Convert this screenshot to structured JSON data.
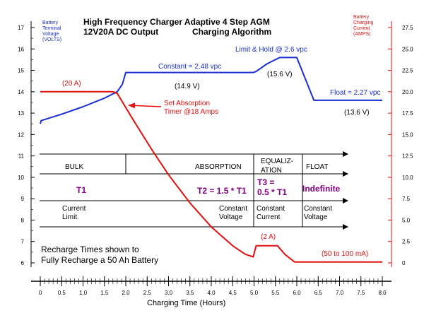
{
  "chart_data": {
    "type": "line",
    "title": "High Frequency Charger Adaptive 4 Step AGM",
    "title_line2_left": "12V20A DC Output",
    "title_line2_right": "Charging Algorithm",
    "xlabel": "Charging Time (Hours)",
    "ylabel_left": [
      "Battery",
      "Terminal",
      "Voltage",
      "(VOLTS)"
    ],
    "ylabel_right": [
      "Battery",
      "Charging",
      "Current",
      "(AMPS)"
    ],
    "xlim": [
      0,
      8.0
    ],
    "ylim_left": [
      6,
      17
    ],
    "ylim_right": [
      0,
      27.5
    ],
    "x_ticks": [
      "0",
      "0.5",
      "1.0",
      "1.5",
      "2.0",
      "2.5",
      "3.0",
      "3.5",
      "4.0",
      "4.5",
      "5.0",
      "5.5",
      "6.0",
      "6.5",
      "7.0",
      "7.5",
      "8.0"
    ],
    "y_left_ticks": [
      "6",
      "7",
      "8",
      "9",
      "10",
      "11",
      "12",
      "13",
      "14",
      "15",
      "16",
      "17"
    ],
    "y_right_ticks": [
      "0",
      "2.5",
      "5.0",
      "7.5",
      "10.0",
      "12.5",
      "15.0",
      "17.5",
      "20.0",
      "22.5",
      "25.0",
      "27.5"
    ],
    "series": [
      {
        "color": "#1a2fd0",
        "axis": "left",
        "points": [
          [
            0,
            12.5
          ],
          [
            0.02,
            12.65
          ],
          [
            0.1,
            12.7
          ],
          [
            0.5,
            12.95
          ],
          [
            1.0,
            13.3
          ],
          [
            1.5,
            13.7
          ],
          [
            1.8,
            14.0
          ],
          [
            1.92,
            14.35
          ],
          [
            2.0,
            14.9
          ],
          [
            4.98,
            14.9
          ],
          [
            5.05,
            14.95
          ],
          [
            5.3,
            15.3
          ],
          [
            5.6,
            15.6
          ],
          [
            6.0,
            15.6
          ],
          [
            6.4,
            13.6
          ],
          [
            8.0,
            13.6
          ]
        ]
      },
      {
        "color": "#e01010",
        "axis": "right",
        "points": [
          [
            0,
            20
          ],
          [
            1.7,
            20
          ],
          [
            1.8,
            19.8
          ],
          [
            2.2,
            16.5
          ],
          [
            2.6,
            13.3
          ],
          [
            3.0,
            10.3
          ],
          [
            3.5,
            7.0
          ],
          [
            4.0,
            4.2
          ],
          [
            4.5,
            2.0
          ],
          [
            4.8,
            1.0
          ],
          [
            4.98,
            0.7
          ],
          [
            5.05,
            2.0
          ],
          [
            5.55,
            2.0
          ],
          [
            5.72,
            1.0
          ],
          [
            5.95,
            0.1
          ],
          [
            8.0,
            0.1
          ]
        ]
      }
    ],
    "annotations": {
      "constant": "Constant = 2.48 vpc",
      "limit_hold": "Limit & Hold @ 2.6 vpc",
      "float": "Float = 2.27 vpc",
      "v149": "(14.9 V)",
      "v156": "(15.6 V)",
      "v136": "(13.6 V)",
      "a20": "(20 A)",
      "set_absorption_1": "Set Absorption",
      "set_absorption_2": "Timer @18 Amps",
      "a2": "(2 A)",
      "ma": "(50 to 100 mA)",
      "recharge_1": "Recharge Times shown to",
      "recharge_2": "Fully Recharge a 50 Ah Battery"
    },
    "stages": {
      "bulk": "BULK",
      "absorption": "ABSORPTION",
      "equalization_1": "EQUALIZ-",
      "equalization_2": "ATION",
      "float": "FLOAT",
      "t1": "T1",
      "t2": "T2 = 1.5 * T1",
      "t3_1": "T3 =",
      "t3_2": "0.5 * T1",
      "indefinite": "Indefinite",
      "current_limit_1": "Current",
      "current_limit_2": "Limit",
      "cv_abs_1": "Constant",
      "cv_abs_2": "Voltage",
      "cc_eq_1": "Constant",
      "cc_eq_2": "Current",
      "cv_float_1": "Constant",
      "cv_float_2": "Voltage"
    },
    "colors": {
      "voltage": "#1a2fd0",
      "current": "#e01010",
      "title": "#000080",
      "stage_accent": "#800080"
    }
  }
}
